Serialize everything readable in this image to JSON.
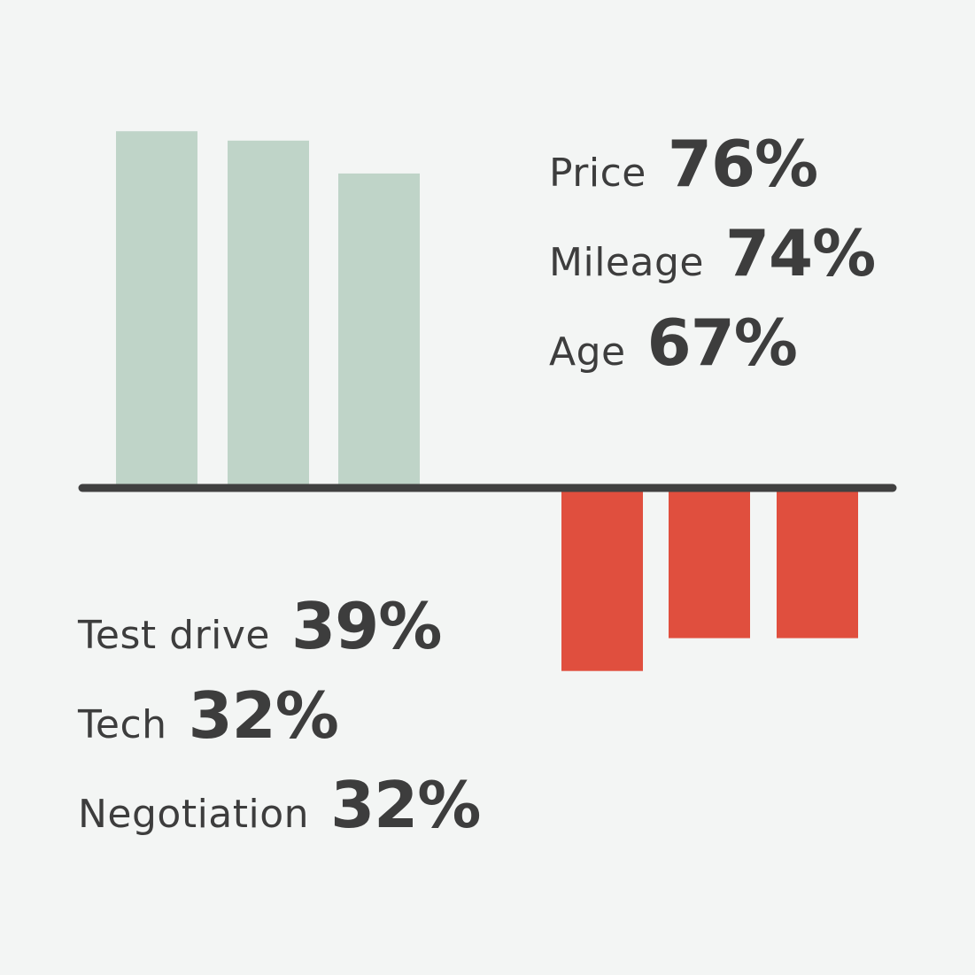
{
  "chart_data": {
    "type": "bar",
    "title": "",
    "xlabel": "",
    "ylabel": "",
    "ylim": [
      -39,
      76
    ],
    "series": [
      {
        "categories": [
          "Price",
          "Mileage",
          "Age"
        ],
        "values": [
          76,
          74,
          67
        ],
        "labels": [
          "76%",
          "74%",
          "67%"
        ],
        "direction": "positive"
      },
      {
        "categories": [
          "Test drive",
          "Tech",
          "Negotiation"
        ],
        "values": [
          -39,
          -32,
          -32
        ],
        "labels": [
          "39%",
          "32%",
          "32%"
        ],
        "direction": "negative"
      }
    ],
    "colors": {
      "positive": "#bfd4c8",
      "negative": "#e04f3e",
      "baseline": "#404040",
      "text": "#3d3d3d",
      "background": "#f3f5f4"
    },
    "grid": false,
    "legend": "none"
  }
}
